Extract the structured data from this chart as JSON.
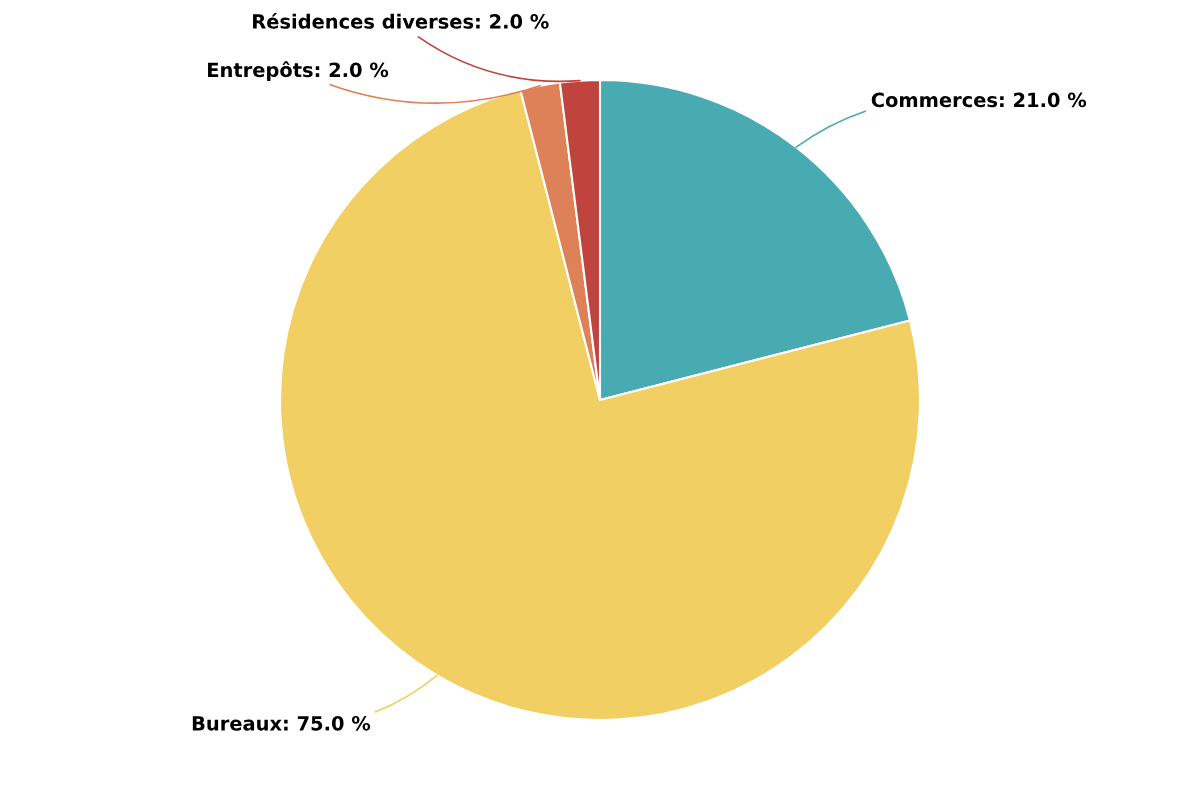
{
  "chart_data": {
    "type": "pie",
    "categories": [
      "Commerces",
      "Bureaux",
      "Entrepôts",
      "Résidences diverses"
    ],
    "values": [
      21,
      75,
      2,
      2
    ],
    "colors": [
      "#48abb1",
      "#f1cf63",
      "#de8159",
      "#c0443d"
    ],
    "value_labels": [
      "21.0 %",
      "75.0 %",
      "2.0 %",
      "2.0 %"
    ]
  }
}
